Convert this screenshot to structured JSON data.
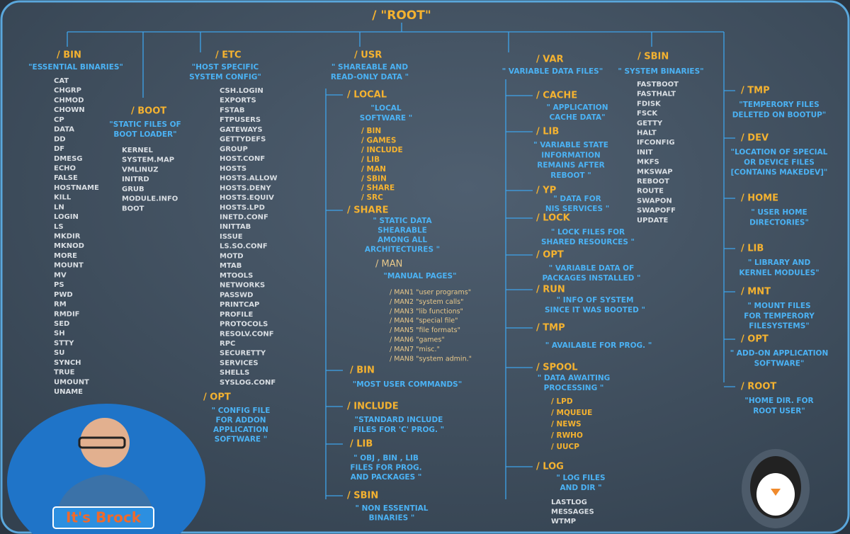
{
  "root": "/  \"ROOT\"",
  "bin": {
    "title": "/ BIN",
    "desc": [
      "\"ESSENTIAL BINARIES\""
    ],
    "items": [
      "CAT",
      "CHGRP",
      "CHMOD",
      "CHOWN",
      "CP",
      "DATA",
      "DD",
      "DF",
      "DMESG",
      "ECHO",
      "FALSE",
      "HOSTNAME",
      "KILL",
      "LN",
      "LOGIN",
      "LS",
      "MKDIR",
      "MKNOD",
      "MORE",
      "MOUNT",
      "MV",
      "PS",
      "PWD",
      "RM",
      "RMDIF",
      "SED",
      "SH",
      "STTY",
      "SU",
      "SYNCH",
      "TRUE",
      "UMOUNT",
      "UNAME"
    ]
  },
  "boot": {
    "title": "/ BOOT",
    "desc": [
      "\"STATIC FILES OF",
      "BOOT LOADER\""
    ],
    "items": [
      "KERNEL",
      "SYSTEM.MAP",
      "VMLINUZ",
      "INITRD",
      "GRUB",
      "MODULE.INFO",
      "BOOT"
    ]
  },
  "etc": {
    "title": "/ ETC",
    "desc": [
      "\"HOST SPECIFIC",
      "SYSTEM CONFIG\""
    ],
    "items": [
      "CSH.LOGIN",
      "EXPORTS",
      "FSTAB",
      "FTPUSERS",
      "GATEWAYS",
      "GETTYDEFS",
      "GROUP",
      "HOST.CONF",
      "HOSTS",
      "HOSTS.ALLOW",
      "HOSTS.DENY",
      "HOSTS.EQUIV",
      "HOSTS.LPD",
      "INETD.CONF",
      "INITTAB",
      "ISSUE",
      "LS.SO.CONF",
      "MOTD",
      "MTAB",
      "MTOOLS",
      "NETWORKS",
      "PASSWD",
      "PRINTCAP",
      "PROFILE",
      "PROTOCOLS",
      "RESOLV.CONF",
      "RPC",
      "SECURETTY",
      "SERVICES",
      "SHELLS",
      "SYSLOG.CONF"
    ],
    "opt": {
      "title": "/ OPT",
      "desc": [
        "\" CONFIG FILE",
        "FOR ADDON",
        "APPLICATION",
        "SOFTWARE \""
      ]
    }
  },
  "usr": {
    "title": "/ USR",
    "desc": [
      "\"  SHAREABLE AND",
      "READ-ONLY DATA \""
    ],
    "children": [
      {
        "title": "/ LOCAL",
        "desc": [
          "\"LOCAL",
          "SOFTWARE \""
        ],
        "items": [
          "/ BIN",
          "/ GAMES",
          "/ INCLUDE",
          "/ LIB",
          "/ MAN",
          "/ SBIN",
          "/ SHARE",
          "/ SRC"
        ]
      },
      {
        "title": "/ SHARE",
        "desc": [
          "\" STATIC DATA",
          "SHEARABLE",
          "AMONG ALL",
          "ARCHITECTURES \""
        ],
        "man": {
          "title": "/ MAN",
          "desc": [
            "\"MANUAL PAGES\""
          ],
          "items": [
            "/ MAN1 \"user programs\"",
            "/ MAN2 \"system calls\"",
            "/ MAN3 \"lib functions\"",
            "/ MAN4 \"special file\"",
            "/ MAN5 \"file formats\"",
            "/ MAN6 \"games\"",
            "/ MAN7 \"misc.\"",
            "/ MAN8 \"system admin.\""
          ]
        }
      },
      {
        "title": "/ BIN",
        "desc": [
          "\"MOST USER COMMANDS\""
        ]
      },
      {
        "title": "/ INCLUDE",
        "desc": [
          "\"STANDARD INCLUDE",
          "FILES FOR 'C' PROG. \""
        ]
      },
      {
        "title": "/ LIB",
        "desc": [
          "\"  OBJ , BIN , LIB",
          "FILES FOR PROG.",
          "AND PACKAGES \""
        ]
      },
      {
        "title": "/ SBIN",
        "desc": [
          "\" NON ESSENTIAL",
          "BINARIES \""
        ]
      }
    ]
  },
  "var": {
    "title": "/ VAR",
    "desc": [
      "\" VARIABLE DATA FILES\""
    ],
    "children": [
      {
        "title": "/ CACHE",
        "desc": [
          "\" APPLICATION",
          "CACHE DATA\""
        ]
      },
      {
        "title": "/ LIB",
        "desc": [
          "\" VARIABLE STATE",
          "INFORMATION",
          "REMAINS AFTER",
          "REBOOT \""
        ]
      },
      {
        "title": "/ YP",
        "desc": [
          "\" DATA FOR",
          "NIS SERVICES \""
        ]
      },
      {
        "title": "/ LOCK",
        "desc": [
          "\" LOCK FILES FOR",
          "SHARED RESOURCES \""
        ]
      },
      {
        "title": "/ OPT",
        "desc": [
          "\" VARIABLE DATA OF",
          "PACKAGES INSTALLED \""
        ]
      },
      {
        "title": "/ RUN",
        "desc": [
          "\" INFO OF SYSTEM",
          "SINCE IT WAS BOOTED \""
        ]
      },
      {
        "title": "/ TMP",
        "desc": [
          "\" AVAILABLE FOR PROG. \""
        ]
      },
      {
        "title": "/ SPOOL",
        "desc": [
          "\" DATA AWAITING",
          "PROCESSING \""
        ],
        "items": [
          "/ LPD",
          "/ MQUEUE",
          "/ NEWS",
          "/ RWHO",
          "/ UUCP"
        ]
      },
      {
        "title": "/ LOG",
        "desc": [
          "\" LOG FILES",
          "AND DIR \""
        ],
        "items": [
          "LASTLOG",
          "MESSAGES",
          "WTMP"
        ]
      }
    ]
  },
  "sbin": {
    "title": "/ SBIN",
    "desc": [
      "\" SYSTEM BINARIES\""
    ],
    "items": [
      "FASTBOOT",
      "FASTHALT",
      "FDISK",
      "FSCK",
      "GETTY",
      "HALT",
      "IFCONFIG",
      "INIT",
      "MKFS",
      "MKSWAP",
      "REBOOT",
      "ROUTE",
      "SWAPON",
      "SWAPOFF",
      "UPDATE"
    ]
  },
  "right": [
    {
      "title": "/ TMP",
      "desc": [
        "\"TEMPERORY FILES",
        "DELETED ON BOOTUP\""
      ]
    },
    {
      "title": "/ DEV",
      "desc": [
        "\"LOCATION OF SPECIAL",
        "OR DEVICE FILES",
        "[CONTAINS MAKEDEV]\""
      ]
    },
    {
      "title": "/ HOME",
      "desc": [
        "\" USER HOME",
        "DIRECTORIES\""
      ]
    },
    {
      "title": "/ LIB",
      "desc": [
        "\" LIBRARY AND",
        "KERNEL MODULES\""
      ]
    },
    {
      "title": "/ MNT",
      "desc": [
        "\"  MOUNT FILES",
        "FOR TEMPERORY",
        "FILESYSTEMS\""
      ]
    },
    {
      "title": "/ OPT",
      "desc": [
        "\" ADD-ON APPLICATION",
        "SOFTWARE\""
      ]
    },
    {
      "title": "/ ROOT",
      "desc": [
        "\"HOME DIR. FOR",
        "ROOT USER\""
      ]
    }
  ],
  "badge": "It's Brock"
}
